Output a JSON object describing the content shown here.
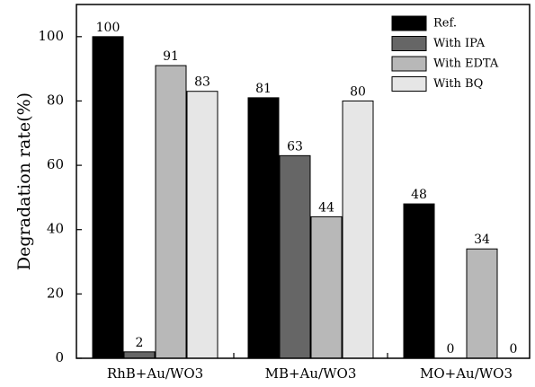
{
  "chart_data": {
    "type": "bar",
    "title": "",
    "xlabel": "",
    "ylabel": "Degradation rate(%)",
    "ylim": [
      0,
      110
    ],
    "yticks": [
      0,
      20,
      40,
      60,
      80,
      100
    ],
    "grid": false,
    "legend_position": "top-right",
    "categories": [
      "RhB+Au/WO3",
      "MB+Au/WO3",
      "MO+Au/WO3"
    ],
    "series": [
      {
        "name": "Ref.",
        "color": "#000000",
        "values": [
          100,
          81,
          48
        ],
        "labels": [
          "100",
          "81",
          "48"
        ]
      },
      {
        "name": "With IPA",
        "color": "#666666",
        "values": [
          2,
          63,
          0
        ],
        "labels": [
          "2",
          "63",
          "0"
        ]
      },
      {
        "name": "With EDTA",
        "color": "#b8b8b8",
        "values": [
          91,
          44,
          34
        ],
        "labels": [
          "91",
          "44",
          "34"
        ]
      },
      {
        "name": "With BQ",
        "color": "#e6e6e6",
        "values": [
          83,
          80,
          0
        ],
        "labels": [
          "83",
          "80",
          "0"
        ]
      }
    ]
  }
}
